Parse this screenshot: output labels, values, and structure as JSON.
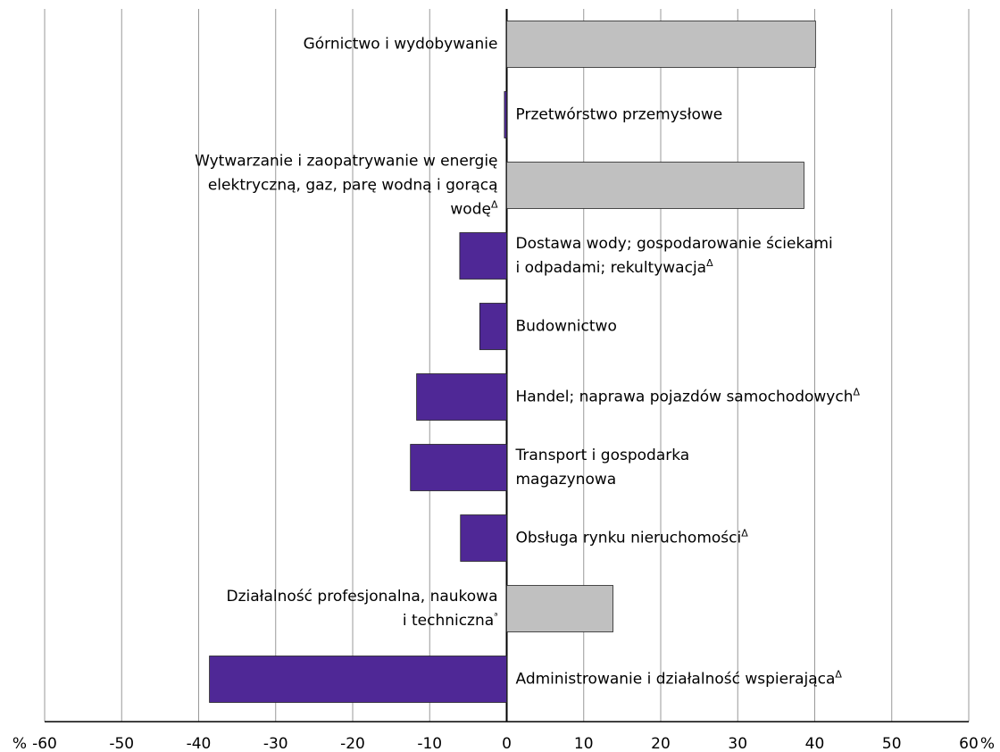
{
  "chart_data": {
    "type": "barh",
    "categories": [
      "Górnictwo i wydobywanie",
      "Przetwórstwo przemysłowe",
      "Wytwarzanie i zaopatrywanie  w energię\nelektryczną, gaz,  parę wodną i gorącą\nwodęΔ",
      "Dostawa wody; gospodarowanie ściekami\ni odpadami; rekultywacjaΔ",
      "Budownictwo",
      "Handel; naprawa pojazdów samochodowychΔ",
      "Transport i gospodarka\nmagazynowa",
      "Obsługa rynku nieruchomościΔ",
      "Działalność profesjonalna, naukowa\ni technicznaᵃ",
      "Administrowanie i działalność wspierającaΔ"
    ],
    "values": [
      40.1,
      -0.3,
      38.6,
      -6.1,
      -3.5,
      -11.7,
      -12.5,
      -6.0,
      13.8,
      -38.6
    ],
    "colors": [
      "#c0c0c0",
      "#4f2896",
      "#c0c0c0",
      "#4f2896",
      "#4f2896",
      "#4f2896",
      "#4f2896",
      "#4f2896",
      "#c0c0c0",
      "#4f2896"
    ],
    "xlabel": "%",
    "xlim": [
      -60,
      60
    ],
    "xticks": [
      -60,
      -50,
      -40,
      -30,
      -20,
      -10,
      0,
      10,
      20,
      30,
      40,
      50,
      60
    ],
    "grid": true
  }
}
